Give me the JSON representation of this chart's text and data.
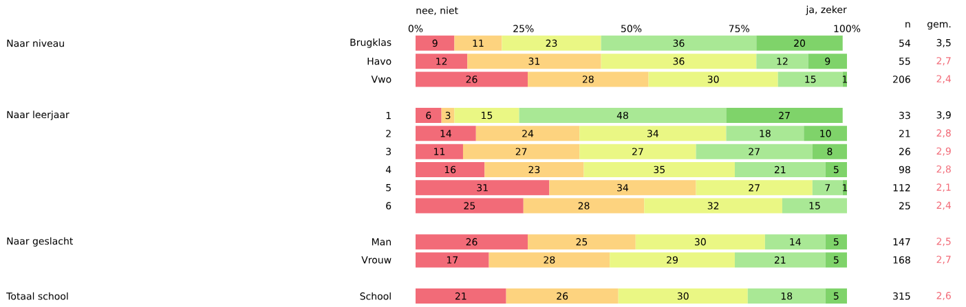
{
  "chart_data": {
    "type": "bar",
    "orientation": "horizontal",
    "stacked": true,
    "data_labels": true,
    "grid": false,
    "categories": [
      "Brugklas",
      "Havo",
      "Vwo",
      null,
      "1",
      "2",
      "3",
      "4",
      "5",
      "6",
      null,
      "Man",
      "Vrouw",
      null,
      "School"
    ],
    "xlim": [
      0,
      100
    ],
    "xticks": [
      {
        "value": 0,
        "label": "0%"
      },
      {
        "value": 25,
        "label": "25%"
      },
      {
        "value": 50,
        "label": "50%"
      },
      {
        "value": 75,
        "label": "75%"
      },
      {
        "value": 100,
        "label": "100%"
      }
    ],
    "series": [
      {
        "color": "#f26b78",
        "values": [
          9,
          12,
          26,
          null,
          6,
          14,
          11,
          16,
          31,
          25,
          null,
          26,
          17,
          null,
          21
        ]
      },
      {
        "color": "#fdd37f",
        "values": [
          11,
          31,
          28,
          null,
          3,
          24,
          27,
          23,
          34,
          28,
          null,
          25,
          28,
          null,
          26
        ]
      },
      {
        "color": "#eaf784",
        "values": [
          23,
          36,
          30,
          null,
          15,
          34,
          27,
          35,
          27,
          32,
          null,
          30,
          29,
          null,
          30
        ]
      },
      {
        "color": "#a9e895",
        "values": [
          36,
          12,
          15,
          null,
          48,
          18,
          27,
          21,
          7,
          15,
          null,
          14,
          21,
          null,
          18
        ]
      },
      {
        "color": "#7fd36a",
        "values": [
          20,
          9,
          1,
          null,
          27,
          10,
          8,
          5,
          1,
          null,
          null,
          5,
          5,
          null,
          5
        ]
      }
    ],
    "annotations": [
      "nee, niet",
      "ja, zeker",
      "n",
      "gem.",
      "Naar niveau",
      "54",
      "3,5",
      "55",
      "2,7",
      "206",
      "2,4",
      "Naar leerjaar",
      "33",
      "3,9",
      "21",
      "2,8",
      "26",
      "2,9",
      "98",
      "2,8",
      "112",
      "2,1",
      "25",
      "2,4",
      "Naar geslacht",
      "147",
      "2,5",
      "168",
      "2,7",
      "Totaal school",
      "315",
      "2,6"
    ]
  }
}
